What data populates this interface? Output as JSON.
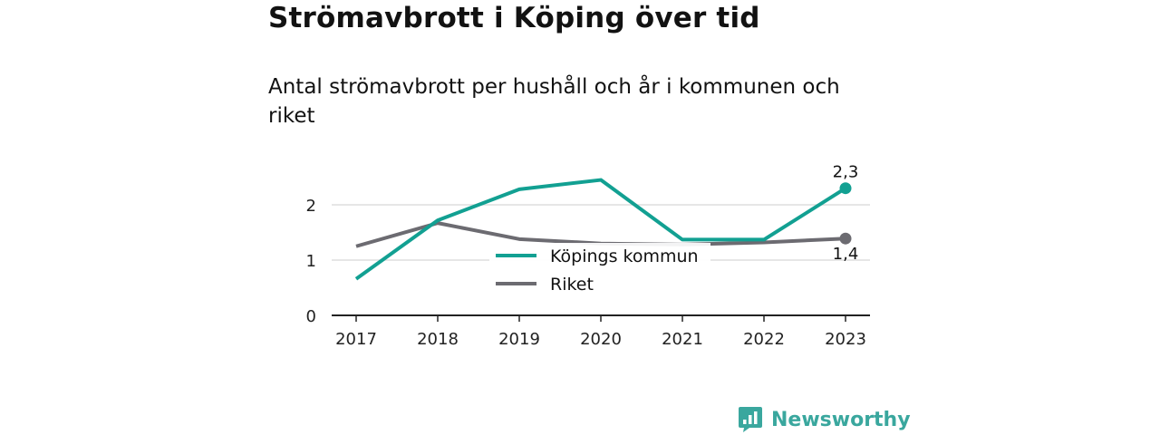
{
  "title": "Strömavbrott i Köping över tid",
  "subtitle": "Antal strömavbrott per hushåll och år i kommunen och riket",
  "brand": {
    "name": "Newsworthy",
    "icon": "bar-chart-badge-icon",
    "color": "#3aa79e"
  },
  "chart_data": {
    "type": "line",
    "x": [
      2017,
      2018,
      2019,
      2020,
      2021,
      2022,
      2023
    ],
    "xticks": [
      "2017",
      "2018",
      "2019",
      "2020",
      "2021",
      "2022",
      "2023"
    ],
    "yticks": [
      "0",
      "1",
      "2"
    ],
    "ylim": [
      0,
      2.6
    ],
    "grid": true,
    "legend": "center-overlay",
    "series": [
      {
        "name": "Köpings kommun",
        "color": "#12a092",
        "values": [
          0.66,
          1.72,
          2.28,
          2.45,
          1.37,
          1.37,
          2.3
        ],
        "end_label": "2,3"
      },
      {
        "name": "Riket",
        "color": "#6c6b71",
        "values": [
          1.25,
          1.67,
          1.38,
          1.3,
          1.28,
          1.32,
          1.39
        ],
        "end_label": "1,4"
      }
    ]
  }
}
